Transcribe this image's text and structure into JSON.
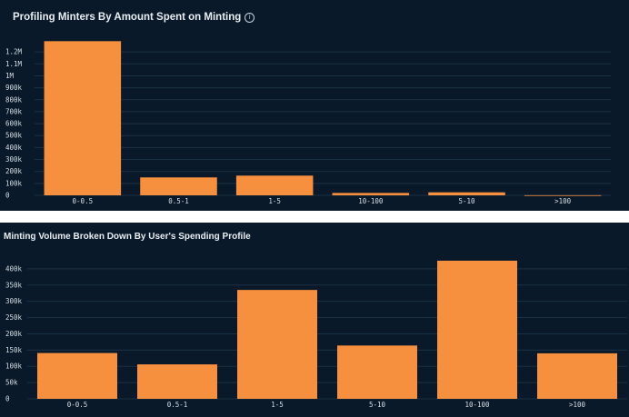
{
  "colors": {
    "background": "#0a1929",
    "bar": "#f7903e",
    "grid": "#1a3145",
    "text": "#d7dee6"
  },
  "chart_data": [
    {
      "type": "bar",
      "title": "Profiling Minters By Amount Spent on Minting",
      "categories": [
        "0-0.5",
        "0.5-1",
        "1-5",
        "10-100",
        "5-10",
        ">100"
      ],
      "values": [
        1290000,
        150000,
        165000,
        20000,
        25000,
        1000
      ],
      "ylim": [
        0,
        1300000
      ],
      "yticks": [
        0,
        100000,
        200000,
        300000,
        400000,
        500000,
        600000,
        700000,
        800000,
        900000,
        1000000,
        1100000,
        1200000
      ],
      "ytick_labels": [
        "0",
        "100k",
        "200k",
        "300k",
        "400k",
        "500k",
        "600k",
        "700k",
        "800k",
        "900k",
        "1M",
        "1.1M",
        "1.2M"
      ],
      "grid": true,
      "info_icon": "info-circle-icon"
    },
    {
      "type": "bar",
      "title": "Minting Volume Broken Down By User's Spending Profile",
      "categories": [
        "0-0.5",
        "0.5-1",
        "1-5",
        "5-10",
        "10-100",
        ">100"
      ],
      "values": [
        141000,
        106000,
        335000,
        164000,
        425000,
        140000
      ],
      "ylim": [
        0,
        450000
      ],
      "yticks": [
        0,
        50000,
        100000,
        150000,
        200000,
        250000,
        300000,
        350000,
        400000
      ],
      "ytick_labels": [
        "0",
        "50k",
        "100k",
        "150k",
        "200k",
        "250k",
        "300k",
        "350k",
        "400k"
      ],
      "grid": true
    }
  ]
}
